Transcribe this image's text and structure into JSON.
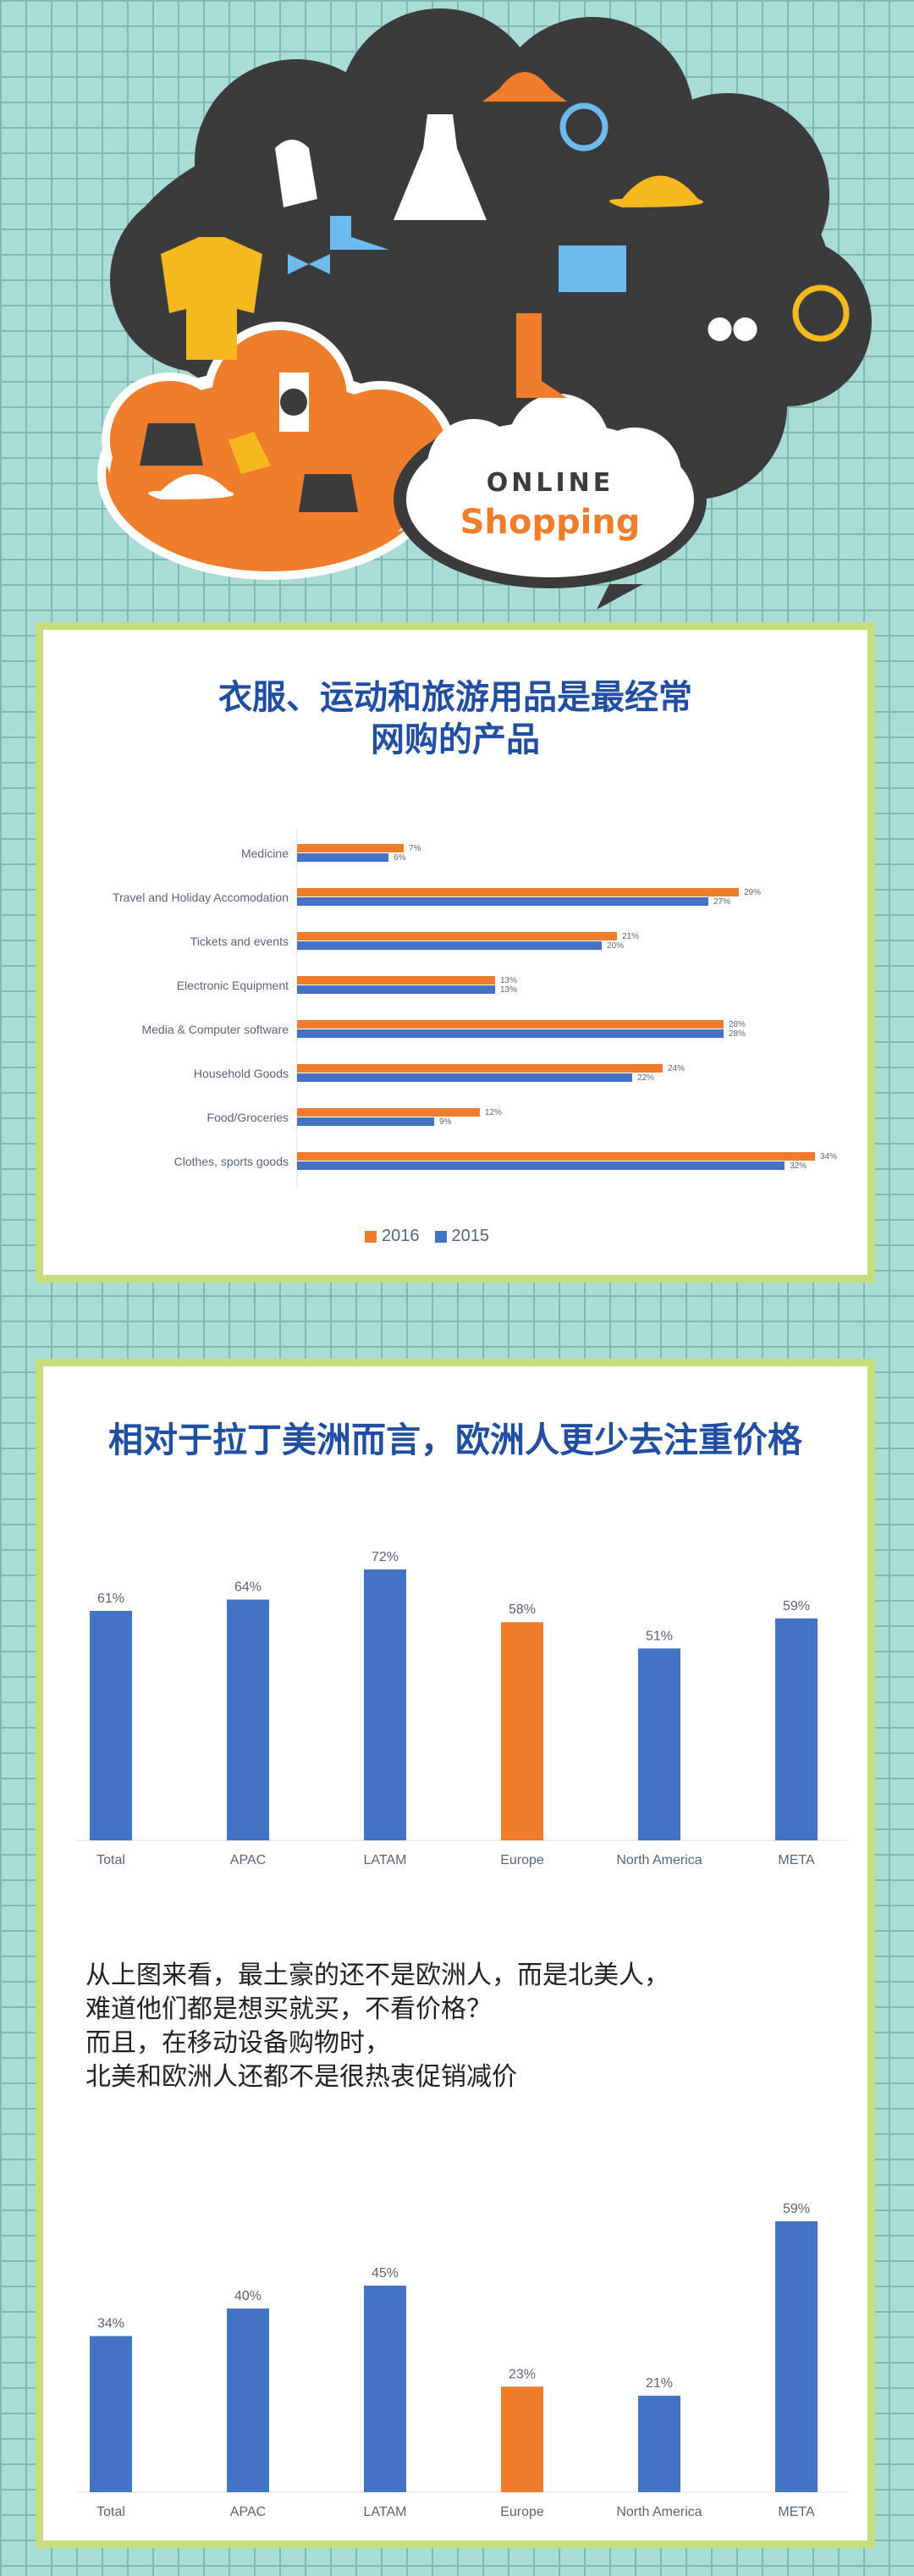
{
  "colors": {
    "orange": "#f07d2b",
    "blue": "#4472c4",
    "dark_cloud": "#3b3b3b",
    "accent_yellow": "#f6b81f",
    "accent_blue": "#6dbbee",
    "title_blue": "#1f4ea3"
  },
  "hero": {
    "badge_line1": "ONLINE",
    "badge_line2": "Shopping"
  },
  "panel1": {
    "title_line1": "衣服、运动和旅游用品是最经常",
    "title_line2": "网购的产品"
  },
  "panel2": {
    "title": "相对于拉丁美洲而言，欧洲人更少去注重价格",
    "paragraph": [
      "从上图来看，最土豪的还不是欧洲人，而是北美人，",
      "难道他们都是想买就买，不看价格？",
      "而且，在移动设备购物时，",
      "北美和欧洲人还都不是很热衷促销减价"
    ]
  },
  "chart_data": [
    {
      "type": "bar",
      "orientation": "horizontal",
      "categories": [
        "Medicine",
        "Travel and Holiday Accomodation",
        "Tickets and events",
        "Electronic Equipment",
        "Media & Computer software",
        "Household Goods",
        "Food/Groceries",
        "Clothes, sports goods"
      ],
      "series": [
        {
          "name": "2016",
          "color": "#f07d2b",
          "values": [
            7,
            29,
            21,
            13,
            28,
            24,
            12,
            34
          ],
          "labels": [
            "7%",
            "29%",
            "21%",
            "13%",
            "28%",
            "24%",
            "12%",
            "34%"
          ]
        },
        {
          "name": "2015",
          "color": "#4472c4",
          "values": [
            6,
            27,
            20,
            13,
            28,
            22,
            9,
            32
          ],
          "labels": [
            "6%",
            "27%",
            "20%",
            "13%",
            "28%",
            "22%",
            "9%",
            "32%"
          ]
        }
      ],
      "legend_placement": "bottom",
      "xlim": [
        0,
        35
      ]
    },
    {
      "type": "bar",
      "categories": [
        "Total",
        "APAC",
        "LATAM",
        "Europe",
        "North America",
        "META"
      ],
      "values": [
        61,
        64,
        72,
        58,
        51,
        59
      ],
      "labels": [
        "61%",
        "64%",
        "72%",
        "58%",
        "51%",
        "59%"
      ],
      "highlight_index": 3,
      "ylim": [
        0,
        72
      ]
    },
    {
      "type": "bar",
      "categories": [
        "Total",
        "APAC",
        "LATAM",
        "Europe",
        "North America",
        "META"
      ],
      "values": [
        34,
        40,
        45,
        23,
        21,
        59
      ],
      "labels": [
        "34%",
        "40%",
        "45%",
        "23%",
        "21%",
        "59%"
      ],
      "highlight_index": 3,
      "ylim": [
        0,
        59
      ]
    }
  ]
}
